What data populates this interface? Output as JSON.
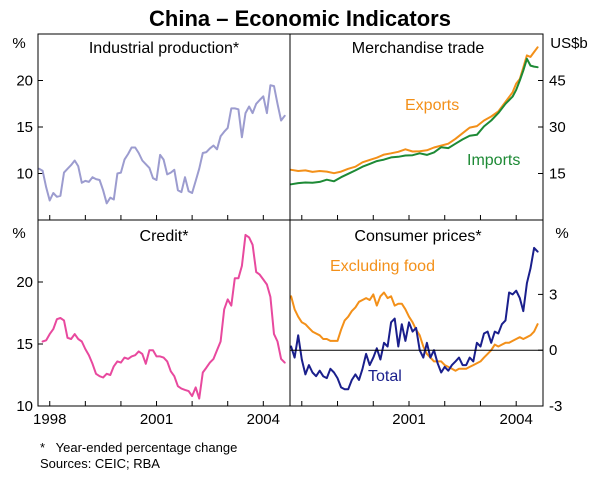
{
  "title": "China – Economic Indicators",
  "footnote": "*   Year-ended percentage change",
  "sources": "Sources: CEIC; RBA",
  "colors": {
    "lavender": "#9c9ccf",
    "pink": "#e8499e",
    "orange": "#f39019",
    "green": "#1d8a35",
    "navy": "#1a1f8c",
    "axis": "#000000"
  },
  "axes": {
    "top_left_unit": "%",
    "top_right_unit": "US$b",
    "bottom_left_unit": "%",
    "bottom_right_unit": "%",
    "x_ticks": [
      "1998",
      "2001",
      "2004"
    ],
    "x_ticks_right": [
      "2001",
      "2004"
    ]
  },
  "chart_data": [
    {
      "type": "line",
      "panel": "top-left",
      "title": "Industrial production*",
      "ylabel": "%",
      "ylim": [
        5,
        25
      ],
      "yticks": [
        10,
        15,
        20
      ],
      "xlim": [
        1997.67,
        2004.75
      ],
      "series": [
        {
          "name": "Industrial production",
          "color": "#9c9ccf",
          "x": [
            1997.7,
            1997.8,
            1997.9,
            1998.0,
            1998.1,
            1998.2,
            1998.3,
            1998.4,
            1998.5,
            1998.6,
            1998.7,
            1998.8,
            1998.9,
            1999.0,
            1999.1,
            1999.2,
            1999.3,
            1999.4,
            1999.5,
            1999.6,
            1999.7,
            1999.8,
            1999.9,
            2000.0,
            2000.1,
            2000.2,
            2000.3,
            2000.4,
            2000.5,
            2000.6,
            2000.7,
            2000.8,
            2000.9,
            2001.0,
            2001.1,
            2001.2,
            2001.3,
            2001.4,
            2001.5,
            2001.6,
            2001.7,
            2001.8,
            2001.9,
            2002.0,
            2002.1,
            2002.2,
            2002.3,
            2002.4,
            2002.5,
            2002.6,
            2002.7,
            2002.8,
            2002.9,
            2003.0,
            2003.1,
            2003.2,
            2003.3,
            2003.4,
            2003.5,
            2003.6,
            2003.7,
            2003.8,
            2003.9,
            2004.0,
            2004.1,
            2004.2,
            2004.3,
            2004.4,
            2004.5,
            2004.6
          ],
          "values": [
            10.5,
            10.3,
            8.5,
            7.1,
            7.9,
            7.5,
            7.6,
            10.1,
            10.5,
            10.9,
            11.4,
            10.8,
            9.0,
            9.2,
            9.1,
            9.6,
            9.4,
            9.3,
            8.2,
            6.8,
            7.4,
            7.2,
            10.0,
            10.1,
            11.5,
            12.1,
            12.8,
            12.8,
            12.2,
            11.4,
            11.0,
            10.6,
            9.5,
            9.3,
            12.0,
            11.5,
            9.9,
            10.1,
            10.4,
            8.2,
            8.0,
            9.6,
            8.1,
            7.9,
            9.2,
            10.5,
            12.2,
            12.3,
            12.7,
            13.0,
            12.6,
            14.0,
            14.5,
            14.9,
            17.0,
            17.0,
            16.9,
            13.9,
            16.5,
            17.2,
            16.5,
            17.5,
            17.9,
            18.3,
            16.5,
            19.5,
            19.4,
            17.5,
            15.7,
            16.2
          ]
        }
      ]
    },
    {
      "type": "line",
      "panel": "top-right",
      "title": "Merchandise trade",
      "ylabel": "US$b",
      "ylim": [
        0,
        60
      ],
      "yticks": [
        15,
        30,
        45
      ],
      "xlim": [
        1997.67,
        2004.75
      ],
      "annotations": [
        "Exports",
        "Imports"
      ],
      "series": [
        {
          "name": "Exports",
          "color": "#f39019",
          "x": [
            1997.7,
            1997.9,
            1998.1,
            1998.3,
            1998.5,
            1998.7,
            1998.9,
            1999.1,
            1999.3,
            1999.5,
            1999.7,
            1999.9,
            2000.1,
            2000.3,
            2000.5,
            2000.7,
            2000.9,
            2001.1,
            2001.3,
            2001.5,
            2001.7,
            2001.9,
            2002.1,
            2002.3,
            2002.5,
            2002.7,
            2002.9,
            2003.1,
            2003.3,
            2003.5,
            2003.7,
            2003.9,
            2004.0,
            2004.1,
            2004.2,
            2004.3,
            2004.4,
            2004.5,
            2004.6
          ],
          "values": [
            16.2,
            15.8,
            16.0,
            15.5,
            15.8,
            15.6,
            15.1,
            15.6,
            16.5,
            17.2,
            18.6,
            19.4,
            20.1,
            21.1,
            21.5,
            22.0,
            22.8,
            22.1,
            22.2,
            22.5,
            23.4,
            24.0,
            24.6,
            26.2,
            28.0,
            29.8,
            30.3,
            32.1,
            33.4,
            35.0,
            38.1,
            41.2,
            44.0,
            45.5,
            49.2,
            53.1,
            52.6,
            54.2,
            55.7
          ]
        },
        {
          "name": "Imports",
          "color": "#1d8a35",
          "x": [
            1997.7,
            1997.9,
            1998.1,
            1998.3,
            1998.5,
            1998.7,
            1998.9,
            1999.1,
            1999.3,
            1999.5,
            1999.7,
            1999.9,
            2000.1,
            2000.3,
            2000.5,
            2000.7,
            2000.9,
            2001.1,
            2001.3,
            2001.5,
            2001.7,
            2001.9,
            2002.1,
            2002.3,
            2002.5,
            2002.7,
            2002.9,
            2003.1,
            2003.3,
            2003.5,
            2003.7,
            2003.9,
            2004.0,
            2004.1,
            2004.2,
            2004.3,
            2004.4,
            2004.5,
            2004.6
          ],
          "values": [
            11.5,
            11.9,
            12.1,
            12.0,
            12.3,
            13.0,
            12.5,
            13.8,
            14.9,
            16.0,
            17.2,
            18.1,
            19.0,
            19.5,
            20.2,
            20.4,
            20.8,
            20.9,
            21.5,
            21.0,
            21.8,
            23.5,
            23.2,
            24.6,
            26.0,
            27.2,
            27.5,
            30.2,
            32.1,
            34.5,
            37.5,
            39.8,
            42.0,
            45.0,
            48.2,
            52.0,
            49.8,
            49.5,
            49.3
          ]
        }
      ]
    },
    {
      "type": "line",
      "panel": "bottom-left",
      "title": "Credit*",
      "ylabel": "%",
      "ylim": [
        10,
        25
      ],
      "yticks": [
        10,
        15,
        20
      ],
      "xlim": [
        1997.67,
        2004.75
      ],
      "x_ticks": [
        "1998",
        "2001",
        "2004"
      ],
      "series": [
        {
          "name": "Credit",
          "color": "#e8499e",
          "x": [
            1997.8,
            1997.9,
            1998.0,
            1998.1,
            1998.2,
            1998.3,
            1998.4,
            1998.5,
            1998.6,
            1998.7,
            1998.8,
            1998.9,
            1999.0,
            1999.1,
            1999.2,
            1999.3,
            1999.4,
            1999.5,
            1999.6,
            1999.7,
            1999.8,
            1999.9,
            2000.0,
            2000.1,
            2000.2,
            2000.3,
            2000.4,
            2000.5,
            2000.6,
            2000.7,
            2000.8,
            2000.9,
            2001.0,
            2001.1,
            2001.2,
            2001.3,
            2001.4,
            2001.5,
            2001.6,
            2001.7,
            2001.8,
            2001.9,
            2002.0,
            2002.1,
            2002.2,
            2002.3,
            2002.4,
            2002.5,
            2002.6,
            2002.7,
            2002.8,
            2002.9,
            2003.0,
            2003.1,
            2003.2,
            2003.3,
            2003.4,
            2003.5,
            2003.6,
            2003.7,
            2003.8,
            2003.9,
            2004.0,
            2004.1,
            2004.2,
            2004.3,
            2004.4,
            2004.5,
            2004.6
          ],
          "values": [
            15.2,
            15.3,
            15.8,
            16.2,
            17.0,
            17.1,
            16.9,
            15.5,
            15.4,
            15.8,
            15.4,
            15.2,
            14.6,
            14.1,
            13.4,
            12.6,
            12.4,
            12.3,
            12.6,
            12.5,
            13.2,
            13.6,
            13.5,
            13.9,
            13.8,
            14.0,
            14.1,
            14.4,
            14.2,
            13.4,
            14.5,
            14.5,
            14.0,
            14.0,
            13.9,
            13.6,
            12.8,
            12.4,
            11.6,
            11.4,
            11.3,
            11.2,
            10.8,
            11.5,
            10.6,
            12.7,
            13.1,
            13.5,
            13.8,
            14.5,
            15.2,
            17.8,
            18.6,
            18.1,
            20.3,
            20.3,
            21.3,
            23.8,
            23.6,
            23.0,
            20.8,
            20.6,
            20.2,
            19.8,
            18.8,
            15.8,
            15.2,
            13.8,
            13.5
          ]
        }
      ]
    },
    {
      "type": "line",
      "panel": "bottom-right",
      "title": "Consumer prices*",
      "ylabel": "%",
      "ylim": [
        -3,
        7
      ],
      "yticks": [
        -3,
        0,
        3
      ],
      "xlim": [
        1997.67,
        2004.75
      ],
      "x_ticks": [
        "2001",
        "2004"
      ],
      "annotations": [
        "Excluding food",
        "Total"
      ],
      "series": [
        {
          "name": "Excluding food",
          "color": "#f39019",
          "x": [
            1997.7,
            1997.8,
            1997.9,
            1998.0,
            1998.1,
            1998.2,
            1998.3,
            1998.4,
            1998.5,
            1998.6,
            1998.7,
            1998.8,
            1998.9,
            1999.0,
            1999.1,
            1999.2,
            1999.3,
            1999.4,
            1999.5,
            1999.6,
            1999.7,
            1999.8,
            1999.9,
            2000.0,
            2000.1,
            2000.2,
            2000.3,
            2000.4,
            2000.5,
            2000.6,
            2000.7,
            2000.8,
            2000.9,
            2001.0,
            2001.1,
            2001.2,
            2001.3,
            2001.4,
            2001.5,
            2001.6,
            2001.7,
            2001.8,
            2001.9,
            2002.0,
            2002.1,
            2002.2,
            2002.3,
            2002.4,
            2002.5,
            2002.6,
            2002.7,
            2002.8,
            2002.9,
            2003.0,
            2003.1,
            2003.2,
            2003.3,
            2003.4,
            2003.5,
            2003.6,
            2003.7,
            2003.8,
            2003.9,
            2004.0,
            2004.1,
            2004.2,
            2004.3,
            2004.4,
            2004.5,
            2004.6
          ],
          "values": [
            2.9,
            2.2,
            1.8,
            1.5,
            1.4,
            1.2,
            1.0,
            0.9,
            0.8,
            0.6,
            0.6,
            0.5,
            0.5,
            0.5,
            1.1,
            1.6,
            1.8,
            2.1,
            2.3,
            2.6,
            2.7,
            2.8,
            2.7,
            3.0,
            2.4,
            2.9,
            3.1,
            2.8,
            2.9,
            2.4,
            2.5,
            2.5,
            2.2,
            1.8,
            1.5,
            1.1,
            0.8,
            0.2,
            -0.2,
            -0.4,
            -0.6,
            -0.6,
            -0.6,
            -0.8,
            -0.9,
            -1.0,
            -1.1,
            -1.0,
            -1.0,
            -1.0,
            -0.9,
            -0.8,
            -0.7,
            -0.6,
            -0.4,
            -0.2,
            0.0,
            0.3,
            0.2,
            0.3,
            0.4,
            0.4,
            0.5,
            0.6,
            0.7,
            0.6,
            0.7,
            0.8,
            1.0,
            1.4
          ]
        },
        {
          "name": "Total",
          "color": "#1a1f8c",
          "x": [
            1997.7,
            1997.8,
            1997.9,
            1998.0,
            1998.1,
            1998.2,
            1998.3,
            1998.4,
            1998.5,
            1998.6,
            1998.7,
            1998.8,
            1998.9,
            1999.0,
            1999.1,
            1999.2,
            1999.3,
            1999.4,
            1999.5,
            1999.6,
            1999.7,
            1999.8,
            1999.9,
            2000.0,
            2000.1,
            2000.2,
            2000.3,
            2000.4,
            2000.5,
            2000.6,
            2000.7,
            2000.8,
            2000.9,
            2001.0,
            2001.1,
            2001.2,
            2001.3,
            2001.4,
            2001.5,
            2001.6,
            2001.7,
            2001.8,
            2001.9,
            2002.0,
            2002.1,
            2002.2,
            2002.3,
            2002.4,
            2002.5,
            2002.6,
            2002.7,
            2002.8,
            2002.9,
            2003.0,
            2003.1,
            2003.2,
            2003.3,
            2003.4,
            2003.5,
            2003.6,
            2003.7,
            2003.8,
            2003.9,
            2004.0,
            2004.1,
            2004.2,
            2004.3,
            2004.4,
            2004.5,
            2004.6
          ],
          "values": [
            0.2,
            -0.4,
            0.8,
            -0.5,
            -1.3,
            -0.8,
            -1.2,
            -1.4,
            -1.1,
            -1.4,
            -1.5,
            -1.0,
            -1.2,
            -1.5,
            -2.0,
            -2.1,
            -2.1,
            -1.6,
            -1.3,
            -1.6,
            -1.0,
            -0.2,
            -0.8,
            -0.4,
            0.1,
            -0.5,
            0.4,
            0.2,
            1.5,
            1.7,
            0.2,
            1.4,
            0.5,
            1.5,
            1.0,
            1.2,
            0.0,
            -0.4,
            0.4,
            -0.4,
            0.0,
            -0.7,
            -1.2,
            -0.9,
            -1.1,
            -0.8,
            -0.6,
            -0.4,
            -0.8,
            -0.8,
            -0.4,
            -0.6,
            0.4,
            0.2,
            0.9,
            1.0,
            0.4,
            1.0,
            0.9,
            1.4,
            1.6,
            3.1,
            3.0,
            3.2,
            2.8,
            2.1,
            3.6,
            4.4,
            5.5,
            5.3
          ]
        }
      ]
    }
  ]
}
